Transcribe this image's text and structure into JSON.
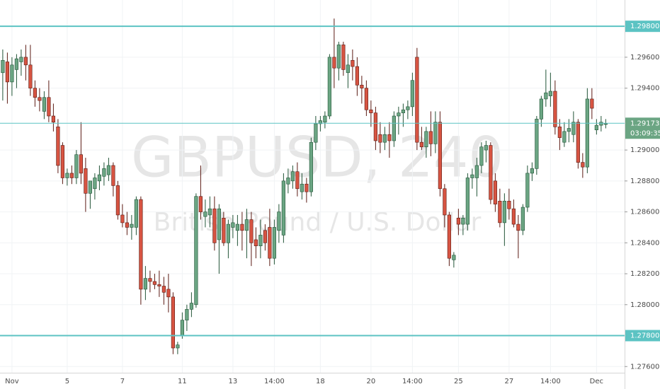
{
  "chart_data": {
    "type": "candlestick",
    "watermark": "GBPUSD, 240",
    "watermark_subtitle": "British Pound / U.S. Dollar",
    "up_color": "#6ba583",
    "down_color": "#d75442",
    "open": [
      1.295,
      1.2957,
      1.2944,
      1.2952,
      1.2957,
      1.296,
      1.2955,
      1.294,
      1.2934,
      1.2925,
      1.2934,
      1.2922,
      1.2915,
      1.2903,
      1.2882,
      1.2885,
      1.2882,
      1.2897,
      1.2888,
      1.2872,
      1.2875,
      1.288,
      1.2883,
      1.2884,
      1.289,
      1.2877,
      1.2858,
      1.2853,
      1.285,
      1.285,
      1.2868,
      1.281,
      1.2817,
      1.2815,
      1.2813,
      1.2812,
      1.281,
      1.2805,
      1.2772,
      1.278,
      1.279,
      1.2797,
      1.28,
      1.287,
      1.2857,
      1.2858,
      1.2862,
      1.2842,
      1.2856,
      1.284,
      1.285,
      1.2848,
      1.2852,
      1.2848,
      1.2855,
      1.2842,
      1.2838,
      1.2848,
      1.285,
      1.283,
      1.2848,
      1.2845,
      1.2878,
      1.288,
      1.2886,
      1.2873,
      1.2878,
      1.2873,
      1.2905,
      1.2917,
      1.2918,
      1.2922,
      1.296,
      1.2953,
      1.2968,
      1.295,
      1.2958,
      1.2954,
      1.2942,
      1.294,
      1.2926,
      1.2924,
      1.291,
      1.2905,
      1.291,
      1.2906,
      1.2922,
      1.2924,
      1.2926,
      1.2928,
      1.296,
      1.2905,
      1.2902,
      1.2912,
      1.2904,
      1.2918,
      1.2875,
      1.2858,
      1.2829,
      1.2856,
      1.2852,
      1.2852,
      1.2882,
      1.2882,
      1.289,
      1.29,
      1.2903,
      1.288,
      1.2867,
      1.2853,
      1.2867,
      1.2862,
      1.2852,
      1.2848,
      1.2863,
      1.2885,
      1.2888,
      1.292,
      1.2933,
      1.2935,
      1.2938,
      1.2915,
      1.2905,
      1.2912,
      1.291,
      1.2918,
      1.2892,
      1.2889,
      1.2933,
      1.2913,
      1.2916,
      1.2917
    ],
    "high": [
      1.2965,
      1.2963,
      1.296,
      1.2962,
      1.2965,
      1.2968,
      1.2968,
      1.2945,
      1.294,
      1.2938,
      1.2945,
      1.293,
      1.292,
      1.2905,
      1.2888,
      1.289,
      1.29,
      1.2918,
      1.2895,
      1.288,
      1.2885,
      1.289,
      1.2892,
      1.2895,
      1.2892,
      1.288,
      1.2865,
      1.286,
      1.2858,
      1.287,
      1.287,
      1.2825,
      1.2822,
      1.282,
      1.2822,
      1.2818,
      1.282,
      1.2808,
      1.2776,
      1.2795,
      1.28,
      1.2808,
      1.2872,
      1.289,
      1.2868,
      1.287,
      1.287,
      1.2865,
      1.286,
      1.2855,
      1.2858,
      1.2858,
      1.286,
      1.2862,
      1.286,
      1.285,
      1.2855,
      1.2852,
      1.2862,
      1.2855,
      1.2865,
      1.2885,
      1.2888,
      1.289,
      1.2892,
      1.2885,
      1.2882,
      1.2908,
      1.2922,
      1.2922,
      1.2925,
      1.2962,
      1.2985,
      1.297,
      1.297,
      1.2962,
      1.2965,
      1.296,
      1.2948,
      1.2945,
      1.2932,
      1.2928,
      1.2918,
      1.2915,
      1.2918,
      1.2925,
      1.2928,
      1.293,
      1.2932,
      1.295,
      1.2966,
      1.2915,
      1.2915,
      1.2925,
      1.2925,
      1.2925,
      1.2878,
      1.286,
      1.2834,
      1.2862,
      1.2858,
      1.2885,
      1.2888,
      1.2895,
      1.2905,
      1.2906,
      1.2905,
      1.2885,
      1.2875,
      1.2872,
      1.2875,
      1.2868,
      1.2858,
      1.2865,
      1.289,
      1.2892,
      1.2922,
      1.2935,
      1.2952,
      1.295,
      1.2945,
      1.292,
      1.2918,
      1.292,
      1.2925,
      1.292,
      1.2898,
      1.294,
      1.294,
      1.292,
      1.2922,
      1.292
    ],
    "low": [
      1.2932,
      1.293,
      1.2935,
      1.294,
      1.2948,
      1.2945,
      1.2935,
      1.2928,
      1.2925,
      1.292,
      1.2918,
      1.2912,
      1.2885,
      1.2878,
      1.2877,
      1.2878,
      1.2878,
      1.2878,
      1.286,
      1.2862,
      1.2868,
      1.2874,
      1.2877,
      1.288,
      1.287,
      1.2855,
      1.285,
      1.2845,
      1.2842,
      1.2845,
      1.28,
      1.2803,
      1.2808,
      1.281,
      1.2805,
      1.28,
      1.2795,
      1.2768,
      1.2768,
      1.2778,
      1.2783,
      1.2792,
      1.2798,
      1.2855,
      1.285,
      1.285,
      1.2835,
      1.282,
      1.2838,
      1.283,
      1.2843,
      1.2838,
      1.2835,
      1.283,
      1.2825,
      1.283,
      1.283,
      1.2835,
      1.2825,
      1.2826,
      1.284,
      1.284,
      1.2872,
      1.2875,
      1.287,
      1.2868,
      1.2866,
      1.287,
      1.29,
      1.2912,
      1.2914,
      1.292,
      1.294,
      1.2945,
      1.2948,
      1.294,
      1.2945,
      1.2935,
      1.293,
      1.2922,
      1.2915,
      1.29,
      1.2898,
      1.29,
      1.2895,
      1.2902,
      1.291,
      1.2915,
      1.292,
      1.2922,
      1.29,
      1.29,
      1.2895,
      1.2896,
      1.2898,
      1.287,
      1.285,
      1.2825,
      1.2824,
      1.2845,
      1.2845,
      1.2848,
      1.2875,
      1.287,
      1.2885,
      1.2892,
      1.2865,
      1.286,
      1.285,
      1.2838,
      1.2855,
      1.285,
      1.283,
      1.2845,
      1.286,
      1.288,
      1.2884,
      1.2915,
      1.2928,
      1.2928,
      1.291,
      1.29,
      1.2902,
      1.2905,
      1.2905,
      1.2888,
      1.2882,
      1.2885,
      1.292,
      1.291,
      1.2912,
      1.2914
    ],
    "close": [
      1.2958,
      1.2944,
      1.2955,
      1.2959,
      1.296,
      1.2955,
      1.294,
      1.2934,
      1.2932,
      1.2934,
      1.2922,
      1.2918,
      1.289,
      1.2882,
      1.2885,
      1.2882,
      1.2897,
      1.2885,
      1.2872,
      1.288,
      1.2882,
      1.2884,
      1.2888,
      1.289,
      1.2877,
      1.2858,
      1.2853,
      1.285,
      1.2852,
      1.2868,
      1.281,
      1.2817,
      1.2815,
      1.2813,
      1.2812,
      1.2808,
      1.2805,
      1.2772,
      1.2774,
      1.279,
      1.2797,
      1.2801,
      1.287,
      1.286,
      1.286,
      1.2862,
      1.284,
      1.2862,
      1.284,
      1.2852,
      1.2853,
      1.2852,
      1.2848,
      1.2855,
      1.284,
      1.2838,
      1.2845,
      1.284,
      1.283,
      1.285,
      1.286,
      1.288,
      1.2882,
      1.2886,
      1.2875,
      1.2878,
      1.2873,
      1.2905,
      1.2917,
      1.2919,
      1.2922,
      1.296,
      1.2953,
      1.2968,
      1.2952,
      1.2955,
      1.2954,
      1.2942,
      1.294,
      1.2926,
      1.2924,
      1.2906,
      1.2905,
      1.291,
      1.2906,
      1.2922,
      1.2924,
      1.2926,
      1.2928,
      1.2945,
      1.2905,
      1.2902,
      1.2912,
      1.2904,
      1.2918,
      1.2875,
      1.2858,
      1.283,
      1.2832,
      1.2852,
      1.2856,
      1.2882,
      1.2884,
      1.289,
      1.2902,
      1.2903,
      1.2868,
      1.2865,
      1.2853,
      1.2867,
      1.2862,
      1.2852,
      1.2848,
      1.2863,
      1.2885,
      1.2888,
      1.292,
      1.2933,
      1.2937,
      1.2938,
      1.2915,
      1.2908,
      1.2912,
      1.2914,
      1.2918,
      1.2892,
      1.2889,
      1.2933,
      1.2927,
      1.2916,
      1.2918,
      1.2917
    ],
    "xlim": [
      -0.6,
      135.1
    ],
    "xticks": [
      {
        "value": 2,
        "label": "Nov"
      },
      {
        "value": 14,
        "label": "5"
      },
      {
        "value": 26,
        "label": "7"
      },
      {
        "value": 39,
        "label": "11"
      },
      {
        "value": 50,
        "label": "13"
      },
      {
        "value": 59,
        "label": "14:00"
      },
      {
        "value": 69,
        "label": "18"
      },
      {
        "value": 80,
        "label": "20"
      },
      {
        "value": 89,
        "label": "14:00"
      },
      {
        "value": 99,
        "label": "25"
      },
      {
        "value": 110,
        "label": "27"
      },
      {
        "value": 119,
        "label": "14:00"
      },
      {
        "value": 129,
        "label": "Dec"
      }
    ],
    "ylim": [
      1.2756,
      1.2997
    ],
    "yticks": [
      {
        "value": 1.276,
        "label": "1.27600"
      },
      {
        "value": 1.28,
        "label": "1.28000"
      },
      {
        "value": 1.282,
        "label": "1.28200"
      },
      {
        "value": 1.284,
        "label": "1.28400"
      },
      {
        "value": 1.286,
        "label": "1.28600"
      },
      {
        "value": 1.288,
        "label": "1.28800"
      },
      {
        "value": 1.29,
        "label": "1.29000"
      },
      {
        "value": 1.294,
        "label": "1.29400"
      },
      {
        "value": 1.296,
        "label": "1.29600"
      }
    ],
    "hlines": [
      {
        "value": 1.298,
        "label": "1.29800"
      },
      {
        "value": 1.278,
        "label": "1.27800"
      }
    ],
    "hline_color": "#5cc3c3",
    "last_price": {
      "value": 1.29173,
      "label": "1.29173"
    },
    "countdown": "03:09:35",
    "grid": true
  }
}
